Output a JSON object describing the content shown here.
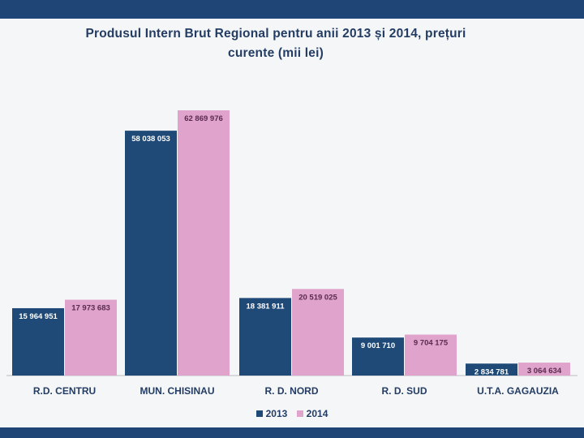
{
  "title_line1": "Produsul Intern Brut Regional pentru anii 2013 și 2014, prețuri",
  "title_line2": "curente (mii lei)",
  "chart_data": {
    "type": "bar",
    "title": "Produsul Intern Brut Regional pentru anii 2013 și 2014, prețuri curente (mii lei)",
    "categories": [
      "R.D. CENTRU",
      "MUN. CHISINAU",
      "R. D. NORD",
      "R. D. SUD",
      "U.T.A. GAGAUZIA"
    ],
    "series": [
      {
        "name": "2013",
        "color": "#1f4a78",
        "values": [
          15964951,
          58038053,
          18381911,
          9001710,
          2834781
        ],
        "labels": [
          "15 964 951",
          "58 038 053",
          "18 381 911",
          "9 001 710",
          "2 834 781"
        ]
      },
      {
        "name": "2014",
        "color": "#e0a3cb",
        "values": [
          17973683,
          62869976,
          20519025,
          9704175,
          3064634
        ],
        "labels": [
          "17 973 683",
          "62 869 976",
          "20 519 025",
          "9 704 175",
          "3 064 634"
        ]
      }
    ],
    "xlabel": "",
    "ylabel": "",
    "ylim": [
      0,
      70000000
    ],
    "grid": false,
    "legend": "bottom-center"
  }
}
